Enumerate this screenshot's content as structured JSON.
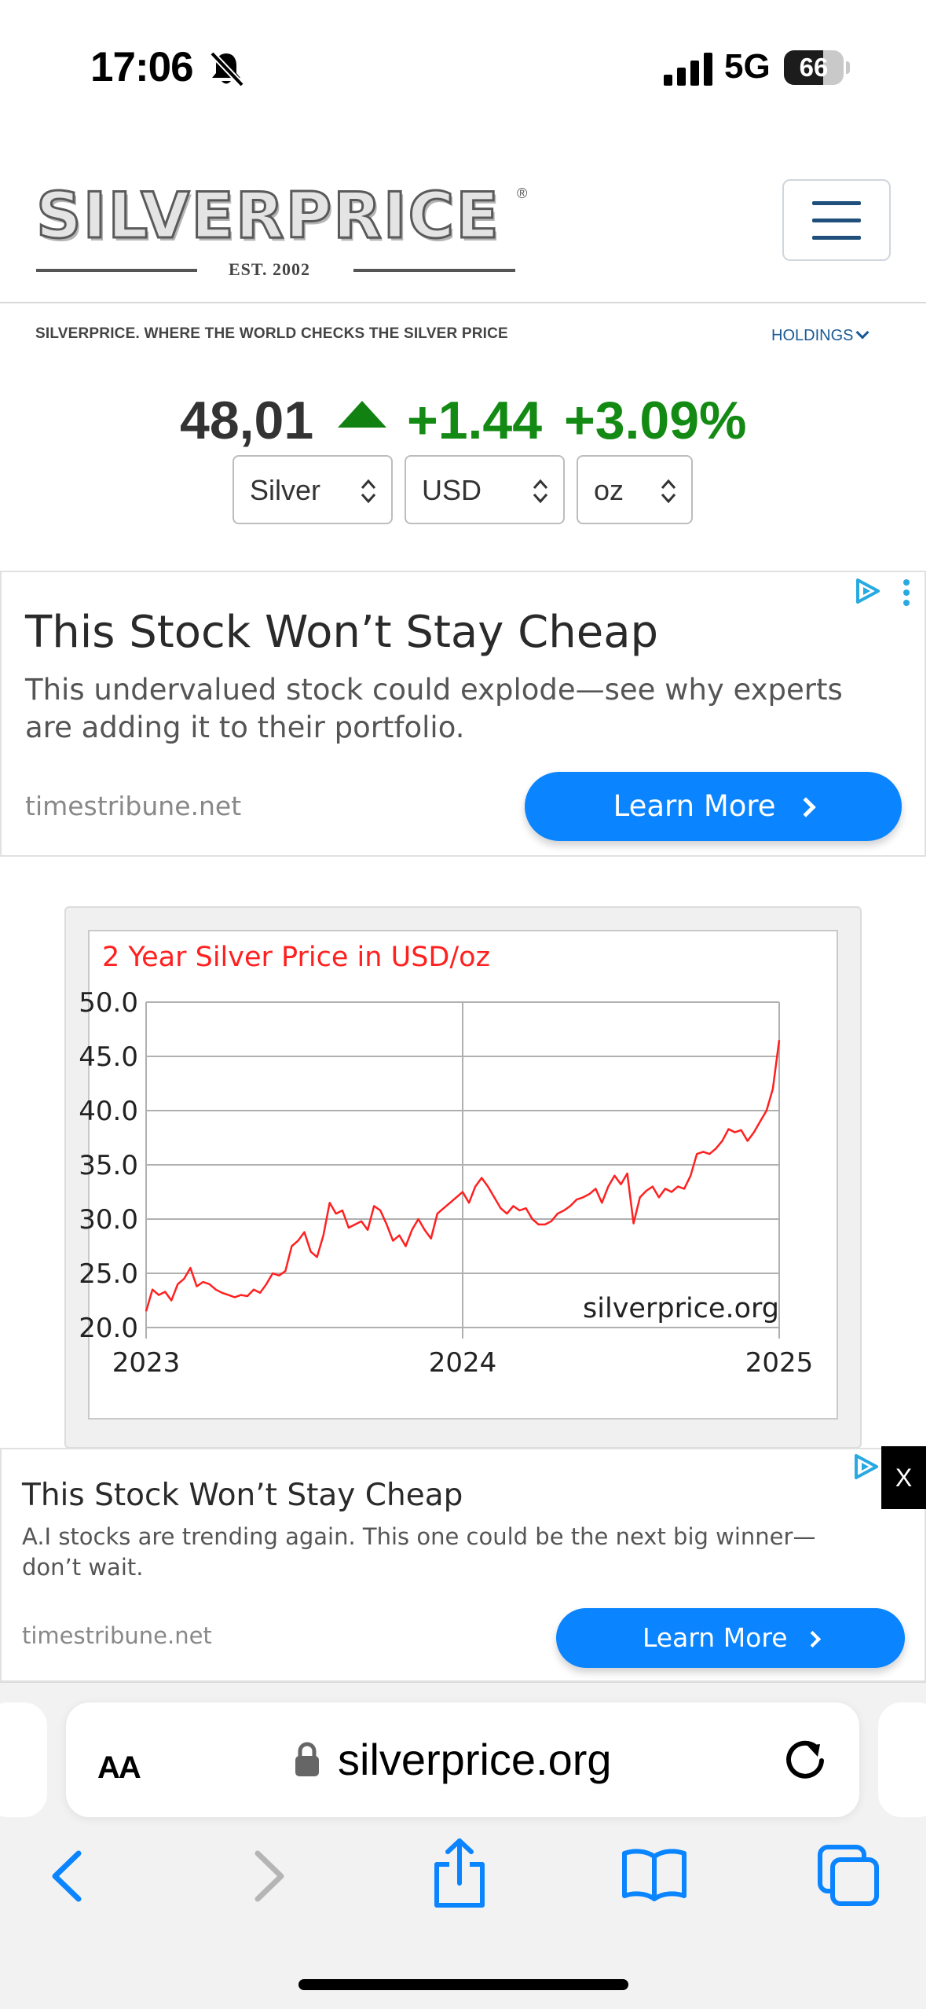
{
  "status_bar": {
    "time": "17:06",
    "network": "5G",
    "battery_level": "66",
    "battery_fraction": 0.66,
    "icons": [
      "bell-slash-icon",
      "cellular-signal-icon",
      "battery-icon"
    ]
  },
  "header": {
    "logo_text": "SILVERPRICE",
    "logo_registered": "®",
    "logo_est": "EST. 2002",
    "menu_icon": "hamburger-menu-icon",
    "tagline": "SILVERPRICE. WHERE THE WORLD CHECKS THE SILVER PRICE",
    "holdings_label": "HOLDINGS"
  },
  "price": {
    "value": "48,01",
    "change": "+1.44",
    "change_pct": "+3.09%",
    "trend_icon": "up-arrow-icon",
    "up_color": "#138a13"
  },
  "selectors": [
    {
      "value": "Silver"
    },
    {
      "value": "USD"
    },
    {
      "value": "oz"
    }
  ],
  "ads": [
    {
      "title": "This Stock Won’t Stay Cheap",
      "body_lines": [
        "This undervalued stock could explode—see why experts",
        "are adding it to their portfolio."
      ],
      "domain": "timestribune.net",
      "cta": "Learn More"
    },
    {
      "title": "This Stock Won’t Stay Cheap",
      "body_lines": [
        "A.I stocks are trending again. This one could be the next big winner—",
        "don’t wait."
      ],
      "domain": "timestribune.net",
      "cta": "Learn More",
      "close_label": "X"
    }
  ],
  "chart_data": {
    "type": "line",
    "title": "2 Year Silver Price in USD/oz",
    "watermark": "silverprice.org",
    "xlabel": "",
    "ylabel": "",
    "x_ticks": [
      "2023",
      "2024",
      "2025"
    ],
    "y_ticks": [
      "50.0",
      "45.0",
      "40.0",
      "35.0",
      "30.0",
      "25.0",
      "20.0"
    ],
    "xlim": [
      2023.0,
      2025.0
    ],
    "ylim": [
      20,
      50
    ],
    "grid": true,
    "line_color": "#ff2020",
    "title_color": "#ff2020",
    "series": [
      {
        "x": [
          2023.0,
          2023.02,
          2023.04,
          2023.06,
          2023.08,
          2023.1,
          2023.12,
          2023.14,
          2023.16,
          2023.18,
          2023.2,
          2023.22,
          2023.24,
          2023.26,
          2023.28,
          2023.3,
          2023.32,
          2023.34,
          2023.36,
          2023.38,
          2023.4,
          2023.42,
          2023.44,
          2023.46,
          2023.48,
          2023.5,
          2023.52,
          2023.54,
          2023.56,
          2023.58,
          2023.6,
          2023.62,
          2023.64,
          2023.66,
          2023.68,
          2023.7,
          2023.72,
          2023.74,
          2023.76,
          2023.78,
          2023.8,
          2023.82,
          2023.84,
          2023.86,
          2023.88,
          2023.9,
          2023.92,
          2023.94,
          2023.96,
          2023.98,
          2024.0,
          2024.02,
          2024.04,
          2024.06,
          2024.08,
          2024.1,
          2024.12,
          2024.14,
          2024.16,
          2024.18,
          2024.2,
          2024.22,
          2024.24,
          2024.26,
          2024.28,
          2024.3,
          2024.32,
          2024.34,
          2024.36,
          2024.38,
          2024.4,
          2024.42,
          2024.44,
          2024.46,
          2024.48,
          2024.5,
          2024.52,
          2024.54,
          2024.56,
          2024.58,
          2024.6,
          2024.62,
          2024.64,
          2024.66,
          2024.68,
          2024.7,
          2024.72,
          2024.74,
          2024.76,
          2024.78,
          2024.8,
          2024.82,
          2024.84,
          2024.86,
          2024.88,
          2024.9,
          2024.92,
          2024.94,
          2024.96,
          2024.98,
          2025.0
        ],
        "y": [
          21.5,
          23.5,
          23.0,
          23.3,
          22.5,
          24.0,
          24.5,
          25.5,
          23.8,
          24.2,
          24.0,
          23.5,
          23.2,
          23.0,
          22.8,
          23.0,
          22.9,
          23.5,
          23.2,
          24.0,
          25.0,
          24.8,
          25.2,
          27.5,
          28.0,
          28.8,
          27.0,
          26.5,
          28.5,
          31.5,
          30.5,
          30.8,
          29.2,
          29.5,
          29.8,
          29.0,
          31.2,
          30.8,
          29.5,
          28.0,
          28.5,
          27.5,
          29.0,
          30.0,
          29.0,
          28.2,
          30.5,
          31.0,
          31.5,
          32.0,
          32.5,
          31.5,
          33.0,
          33.8,
          33.0,
          32.0,
          31.0,
          30.5,
          31.2,
          30.8,
          31.0,
          30.0,
          29.5,
          29.5,
          29.8,
          30.5,
          30.8,
          31.2,
          31.8,
          32.0,
          32.3,
          32.8,
          31.5,
          33.0,
          34.0,
          33.2,
          34.2,
          29.6,
          32.0,
          32.6,
          33.0,
          32.0,
          32.8,
          32.5,
          33.0,
          32.8,
          34.0,
          36.0,
          36.2,
          36.0,
          36.5,
          37.2,
          38.3,
          38.0,
          38.2,
          37.2,
          38.0,
          39.0,
          40.0,
          42.0,
          46.5
        ]
      }
    ]
  },
  "safari": {
    "text_size_label": "AA",
    "url": "silverprice.org",
    "icons": [
      "lock-icon",
      "reload-icon",
      "back-icon",
      "forward-icon",
      "share-icon",
      "bookmarks-icon",
      "tabs-icon"
    ]
  }
}
